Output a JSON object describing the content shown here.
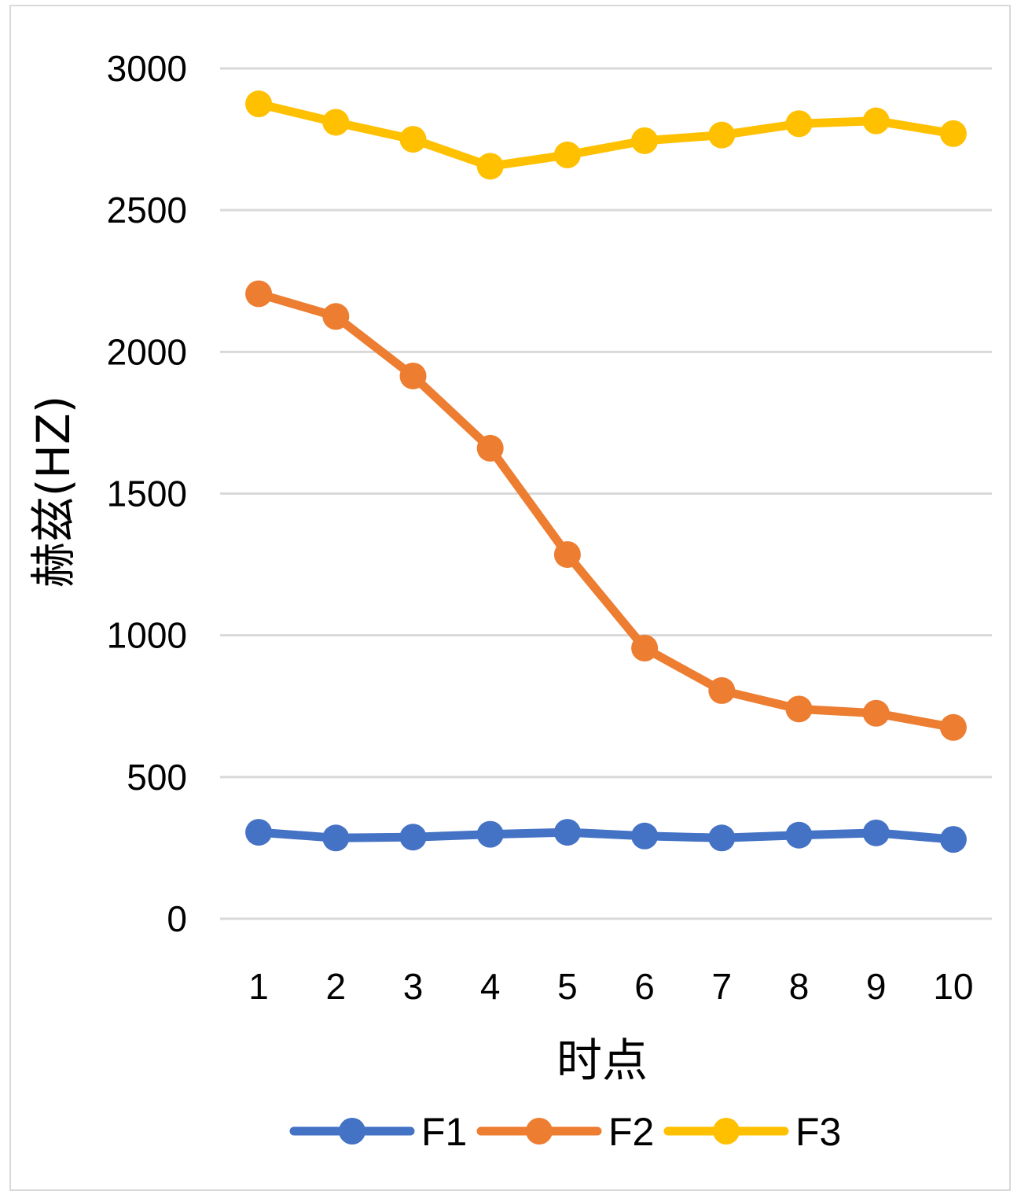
{
  "chart_data": {
    "type": "line",
    "title": "",
    "xlabel": "时点",
    "ylabel": "赫兹(HZ)",
    "x": [
      1,
      2,
      3,
      4,
      5,
      6,
      7,
      8,
      9,
      10
    ],
    "ylim": [
      0,
      3000
    ],
    "yticks": [
      0,
      500,
      1000,
      1500,
      2000,
      2500,
      3000
    ],
    "grid": true,
    "legend_position": "bottom",
    "series": [
      {
        "name": "F1",
        "color": "#4472C4",
        "values": [
          305,
          285,
          288,
          298,
          305,
          292,
          285,
          295,
          303,
          280
        ]
      },
      {
        "name": "F2",
        "color": "#ED7D31",
        "values": [
          2205,
          2125,
          1915,
          1660,
          1285,
          955,
          805,
          740,
          725,
          675
        ]
      },
      {
        "name": "F3",
        "color": "#FFC000",
        "values": [
          2875,
          2810,
          2750,
          2655,
          2695,
          2745,
          2765,
          2805,
          2815,
          2770
        ]
      }
    ]
  }
}
